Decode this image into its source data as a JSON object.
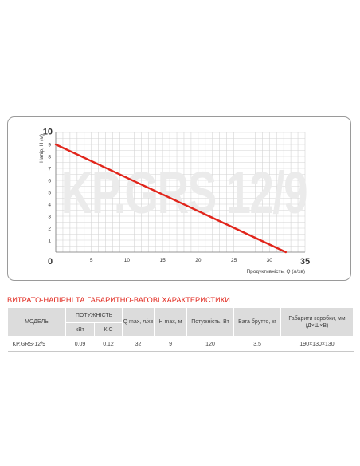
{
  "chart_data": {
    "type": "line",
    "watermark": "KP.GRS 12/9",
    "xlabel": "Продуктивність, Q (л/хв)",
    "ylabel": "Напір, H (м)",
    "xlim": [
      0,
      35
    ],
    "ylim": [
      0,
      10
    ],
    "x_ticks": [
      "0",
      "5",
      "10",
      "15",
      "20",
      "25",
      "30",
      "35"
    ],
    "y_ticks": [
      "1",
      "2",
      "3",
      "4",
      "5",
      "6",
      "7",
      "8",
      "9",
      "10"
    ],
    "grid": true,
    "line_color": "#e1251b",
    "series": [
      {
        "x": [
          0,
          32.3
        ],
        "y": [
          9,
          0
        ]
      }
    ]
  },
  "table": {
    "title": "ВИТРАТО-НАПІРНІ ТА ГАБАРИТНО-ВАГОВІ ХАРАКТЕРИСТИКИ",
    "headers": {
      "model": "МОДЕЛЬ",
      "power_group": "ПОТУЖНІСТЬ",
      "kw": "кВт",
      "hp": "К.С",
      "qmax": "Q max, л/хв",
      "hmax": "H max, м",
      "power_w": "Потужність, Вт",
      "weight": "Вага брутто, кг",
      "box": "Габарити коробки, мм (Д×Ш×В)"
    },
    "rows": [
      {
        "model": "KP.GRS-12/9",
        "kw": "0,09",
        "hp": "0,12",
        "qmax": "32",
        "hmax": "9",
        "power_w": "120",
        "weight": "3,5",
        "box": "190×130×130"
      }
    ]
  }
}
